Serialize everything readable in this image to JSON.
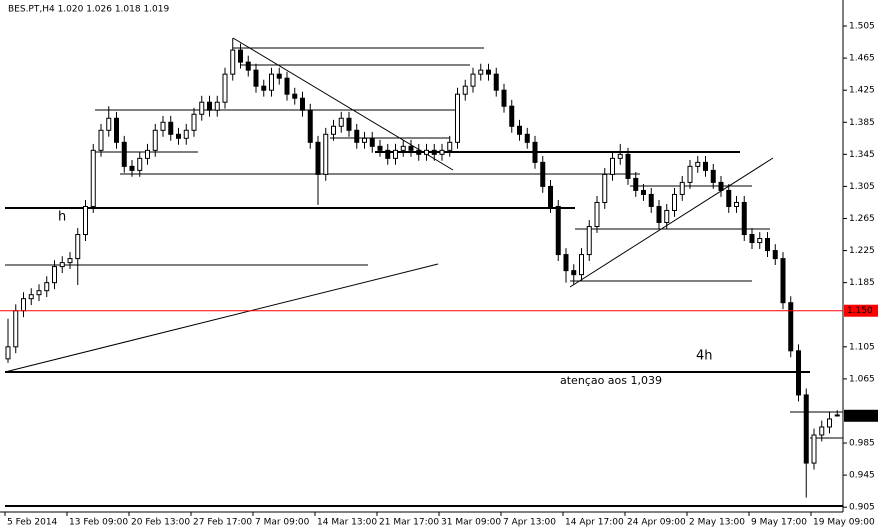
{
  "chart_data": {
    "type": "candlestick",
    "title": "BES.PT,H4  1.020 1.026 1.018 1.019",
    "categories": [
      "5 Feb 2014",
      null,
      null,
      null,
      null,
      null,
      null,
      null,
      "13 Feb 09:00",
      null,
      null,
      null,
      null,
      null,
      null,
      null,
      "20 Feb 13:00",
      null,
      null,
      null,
      null,
      null,
      null,
      null,
      "27 Feb 17:00",
      null,
      null,
      null,
      null,
      null,
      null,
      null,
      "7 Mar 09:00",
      null,
      null,
      null,
      null,
      null,
      null,
      null,
      "14 Mar 13:00",
      null,
      null,
      null,
      null,
      null,
      null,
      null,
      "21 Mar 17:00",
      null,
      null,
      null,
      null,
      null,
      null,
      null,
      "31 Mar 09:00",
      null,
      null,
      null,
      null,
      null,
      null,
      null,
      "7 Apr 13:00",
      null,
      null,
      null,
      null,
      null,
      null,
      null,
      "14 Apr 17:00",
      null,
      null,
      null,
      null,
      null,
      null,
      null,
      "24 Apr 09:00",
      null,
      null,
      null,
      null,
      null,
      null,
      null,
      "2 May 13:00",
      null,
      null,
      null,
      null,
      null,
      null,
      null,
      "9 May 17:00",
      null,
      null,
      null,
      null,
      null,
      null,
      null,
      "19 May 09:00",
      null,
      null,
      null
    ],
    "open": [
      1.09,
      1.105,
      1.15,
      1.165,
      1.17,
      1.175,
      1.185,
      1.205,
      1.21,
      1.215,
      1.245,
      1.28,
      1.35,
      1.375,
      1.39,
      1.36,
      1.33,
      1.325,
      1.34,
      1.35,
      1.375,
      1.385,
      1.37,
      1.365,
      1.375,
      1.395,
      1.41,
      1.4,
      1.41,
      1.445,
      1.475,
      1.46,
      1.45,
      1.43,
      1.425,
      1.445,
      1.44,
      1.42,
      1.415,
      1.4,
      1.36,
      1.32,
      1.37,
      1.38,
      1.39,
      1.375,
      1.36,
      1.365,
      1.355,
      1.35,
      1.34,
      1.35,
      1.355,
      1.35,
      1.345,
      1.35,
      1.345,
      1.35,
      1.36,
      1.42,
      1.43,
      1.445,
      1.45,
      1.445,
      1.425,
      1.405,
      1.38,
      1.37,
      1.36,
      1.335,
      1.305,
      1.28,
      1.22,
      1.2,
      1.195,
      1.22,
      1.255,
      1.285,
      1.32,
      1.34,
      1.345,
      1.315,
      1.3,
      1.295,
      1.28,
      1.26,
      1.275,
      1.295,
      1.31,
      1.33,
      1.335,
      1.325,
      1.31,
      1.3,
      1.28,
      1.285,
      1.245,
      1.235,
      1.24,
      1.225,
      1.215,
      1.16,
      1.1,
      1.045,
      0.96,
      0.995,
      1.005,
      1.02
    ],
    "high": [
      1.14,
      1.158,
      1.173,
      1.178,
      1.183,
      1.193,
      1.213,
      1.218,
      1.223,
      1.253,
      1.288,
      1.358,
      1.383,
      1.405,
      1.398,
      1.368,
      1.338,
      1.348,
      1.358,
      1.383,
      1.393,
      1.393,
      1.378,
      1.383,
      1.403,
      1.418,
      1.418,
      1.418,
      1.453,
      1.49,
      1.483,
      1.468,
      1.458,
      1.438,
      1.453,
      1.453,
      1.448,
      1.428,
      1.423,
      1.408,
      1.368,
      1.378,
      1.388,
      1.398,
      1.398,
      1.383,
      1.373,
      1.373,
      1.363,
      1.358,
      1.358,
      1.363,
      1.363,
      1.358,
      1.358,
      1.358,
      1.358,
      1.368,
      1.428,
      1.438,
      1.453,
      1.458,
      1.458,
      1.453,
      1.433,
      1.413,
      1.388,
      1.378,
      1.368,
      1.343,
      1.313,
      1.288,
      1.228,
      1.208,
      1.228,
      1.263,
      1.293,
      1.328,
      1.348,
      1.358,
      1.353,
      1.323,
      1.308,
      1.303,
      1.288,
      1.283,
      1.303,
      1.318,
      1.338,
      1.343,
      1.343,
      1.333,
      1.318,
      1.308,
      1.293,
      1.293,
      1.253,
      1.248,
      1.248,
      1.233,
      1.223,
      1.168,
      1.108,
      1.053,
      1.003,
      1.013,
      1.023,
      1.026
    ],
    "low": [
      1.085,
      1.097,
      1.142,
      1.157,
      1.162,
      1.167,
      1.177,
      1.197,
      1.202,
      1.182,
      1.237,
      1.272,
      1.342,
      1.367,
      1.352,
      1.322,
      1.317,
      1.317,
      1.332,
      1.342,
      1.367,
      1.362,
      1.357,
      1.357,
      1.367,
      1.387,
      1.392,
      1.392,
      1.402,
      1.437,
      1.452,
      1.442,
      1.422,
      1.417,
      1.417,
      1.432,
      1.412,
      1.407,
      1.392,
      1.352,
      1.282,
      1.312,
      1.362,
      1.372,
      1.367,
      1.352,
      1.352,
      1.347,
      1.342,
      1.332,
      1.332,
      1.342,
      1.342,
      1.337,
      1.337,
      1.337,
      1.337,
      1.342,
      1.352,
      1.412,
      1.422,
      1.437,
      1.437,
      1.417,
      1.397,
      1.372,
      1.362,
      1.352,
      1.327,
      1.297,
      1.272,
      1.212,
      1.185,
      1.182,
      1.187,
      1.212,
      1.247,
      1.277,
      1.312,
      1.332,
      1.307,
      1.292,
      1.287,
      1.272,
      1.252,
      1.252,
      1.267,
      1.287,
      1.302,
      1.322,
      1.317,
      1.302,
      1.292,
      1.272,
      1.272,
      1.237,
      1.227,
      1.227,
      1.217,
      1.207,
      1.152,
      1.092,
      1.037,
      0.917,
      0.952,
      0.987,
      0.997,
      1.018
    ],
    "close": [
      1.105,
      1.15,
      1.165,
      1.17,
      1.175,
      1.185,
      1.205,
      1.21,
      1.215,
      1.245,
      1.28,
      1.35,
      1.375,
      1.39,
      1.36,
      1.33,
      1.325,
      1.34,
      1.35,
      1.375,
      1.385,
      1.37,
      1.365,
      1.375,
      1.395,
      1.41,
      1.4,
      1.41,
      1.445,
      1.475,
      1.46,
      1.45,
      1.43,
      1.425,
      1.445,
      1.44,
      1.42,
      1.415,
      1.4,
      1.36,
      1.32,
      1.37,
      1.38,
      1.39,
      1.375,
      1.36,
      1.365,
      1.355,
      1.35,
      1.34,
      1.35,
      1.355,
      1.35,
      1.345,
      1.35,
      1.345,
      1.35,
      1.36,
      1.42,
      1.43,
      1.445,
      1.45,
      1.445,
      1.425,
      1.405,
      1.38,
      1.37,
      1.36,
      1.335,
      1.305,
      1.28,
      1.22,
      1.2,
      1.195,
      1.22,
      1.255,
      1.285,
      1.32,
      1.34,
      1.345,
      1.315,
      1.3,
      1.295,
      1.28,
      1.26,
      1.275,
      1.295,
      1.31,
      1.33,
      1.335,
      1.325,
      1.31,
      1.3,
      1.28,
      1.285,
      1.245,
      1.235,
      1.24,
      1.225,
      1.215,
      1.16,
      1.1,
      1.045,
      0.96,
      0.995,
      1.005,
      1.015,
      1.019
    ],
    "close_label": "1.019",
    "ylim": [
      0.899,
      1.525
    ],
    "yticks": [
      1.505,
      1.465,
      1.425,
      1.385,
      1.345,
      1.305,
      1.265,
      1.225,
      1.185,
      1.105,
      1.065,
      0.985,
      0.945,
      0.905
    ],
    "hline": {
      "value": 1.15,
      "label": "1.150",
      "color": "#ff0000"
    },
    "annotations": [
      "h",
      "4h",
      "atençao aos 1,039"
    ],
    "annotation_color": "#ff0000"
  }
}
